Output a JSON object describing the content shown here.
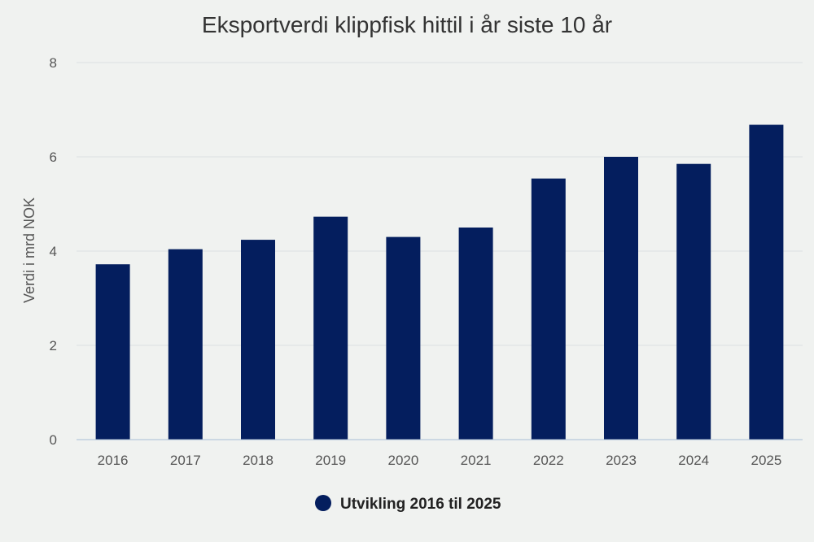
{
  "chart_data": {
    "type": "bar",
    "title": "Eksportverdi klippfisk hittil i år siste 10 år",
    "xlabel": "",
    "ylabel": "Verdi i mrd NOK",
    "categories": [
      "2016",
      "2017",
      "2018",
      "2019",
      "2020",
      "2021",
      "2022",
      "2023",
      "2024",
      "2025"
    ],
    "series": [
      {
        "name": "Utvikling 2016 til 2025",
        "values": [
          3.72,
          4.04,
          4.24,
          4.73,
          4.3,
          4.5,
          5.54,
          6.0,
          5.85,
          6.68
        ],
        "color": "#041e5e"
      }
    ],
    "ylim": [
      0,
      8
    ],
    "yticks": [
      0,
      2,
      4,
      6,
      8
    ],
    "grid": true,
    "legend_position": "bottom-center"
  },
  "colors": {
    "background": "#f0f2f0",
    "bar": "#041e5e",
    "gridline": "#dde0e2"
  }
}
